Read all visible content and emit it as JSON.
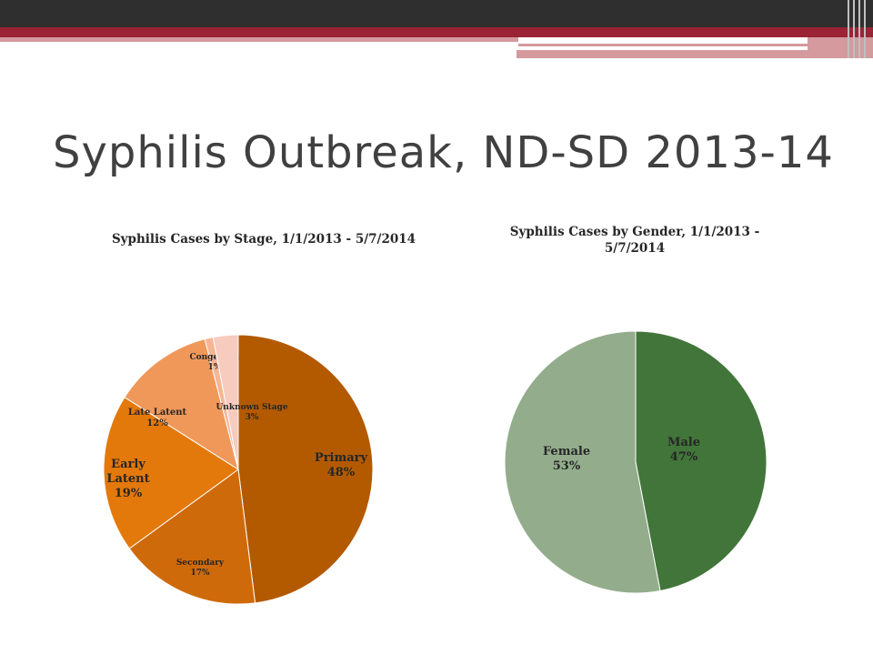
{
  "slide": {
    "title": "Syphilis Outbreak, ND-SD 2013-14"
  },
  "chart_data": [
    {
      "type": "pie",
      "title": "Syphilis Cases by Stage, 1/1/2013 - 5/7/2014",
      "slices": [
        {
          "label": "Primary",
          "value": 48,
          "value_label": "48%",
          "color": "#b35a00"
        },
        {
          "label": "Secondary",
          "value": 17,
          "value_label": "17%",
          "color": "#cf6a0a"
        },
        {
          "label": "Early Latent",
          "value": 19,
          "value_label": "19%",
          "color": "#e3780b"
        },
        {
          "label": "Late Latent",
          "value": 12,
          "value_label": "12%",
          "color": "#f0985a"
        },
        {
          "label": "Congenital",
          "value": 1,
          "value_label": "1%",
          "color": "#f5b693"
        },
        {
          "label": "Unknown Stage",
          "value": 3,
          "value_label": "3%",
          "color": "#f7cbbe"
        }
      ]
    },
    {
      "type": "pie",
      "title": "Syphilis Cases by Gender, 1/1/2013 - 5/7/2014",
      "slices": [
        {
          "label": "Male",
          "value": 47,
          "value_label": "47%",
          "color": "#42753a"
        },
        {
          "label": "Female",
          "value": 53,
          "value_label": "53%",
          "color": "#93ad8c"
        }
      ]
    }
  ]
}
